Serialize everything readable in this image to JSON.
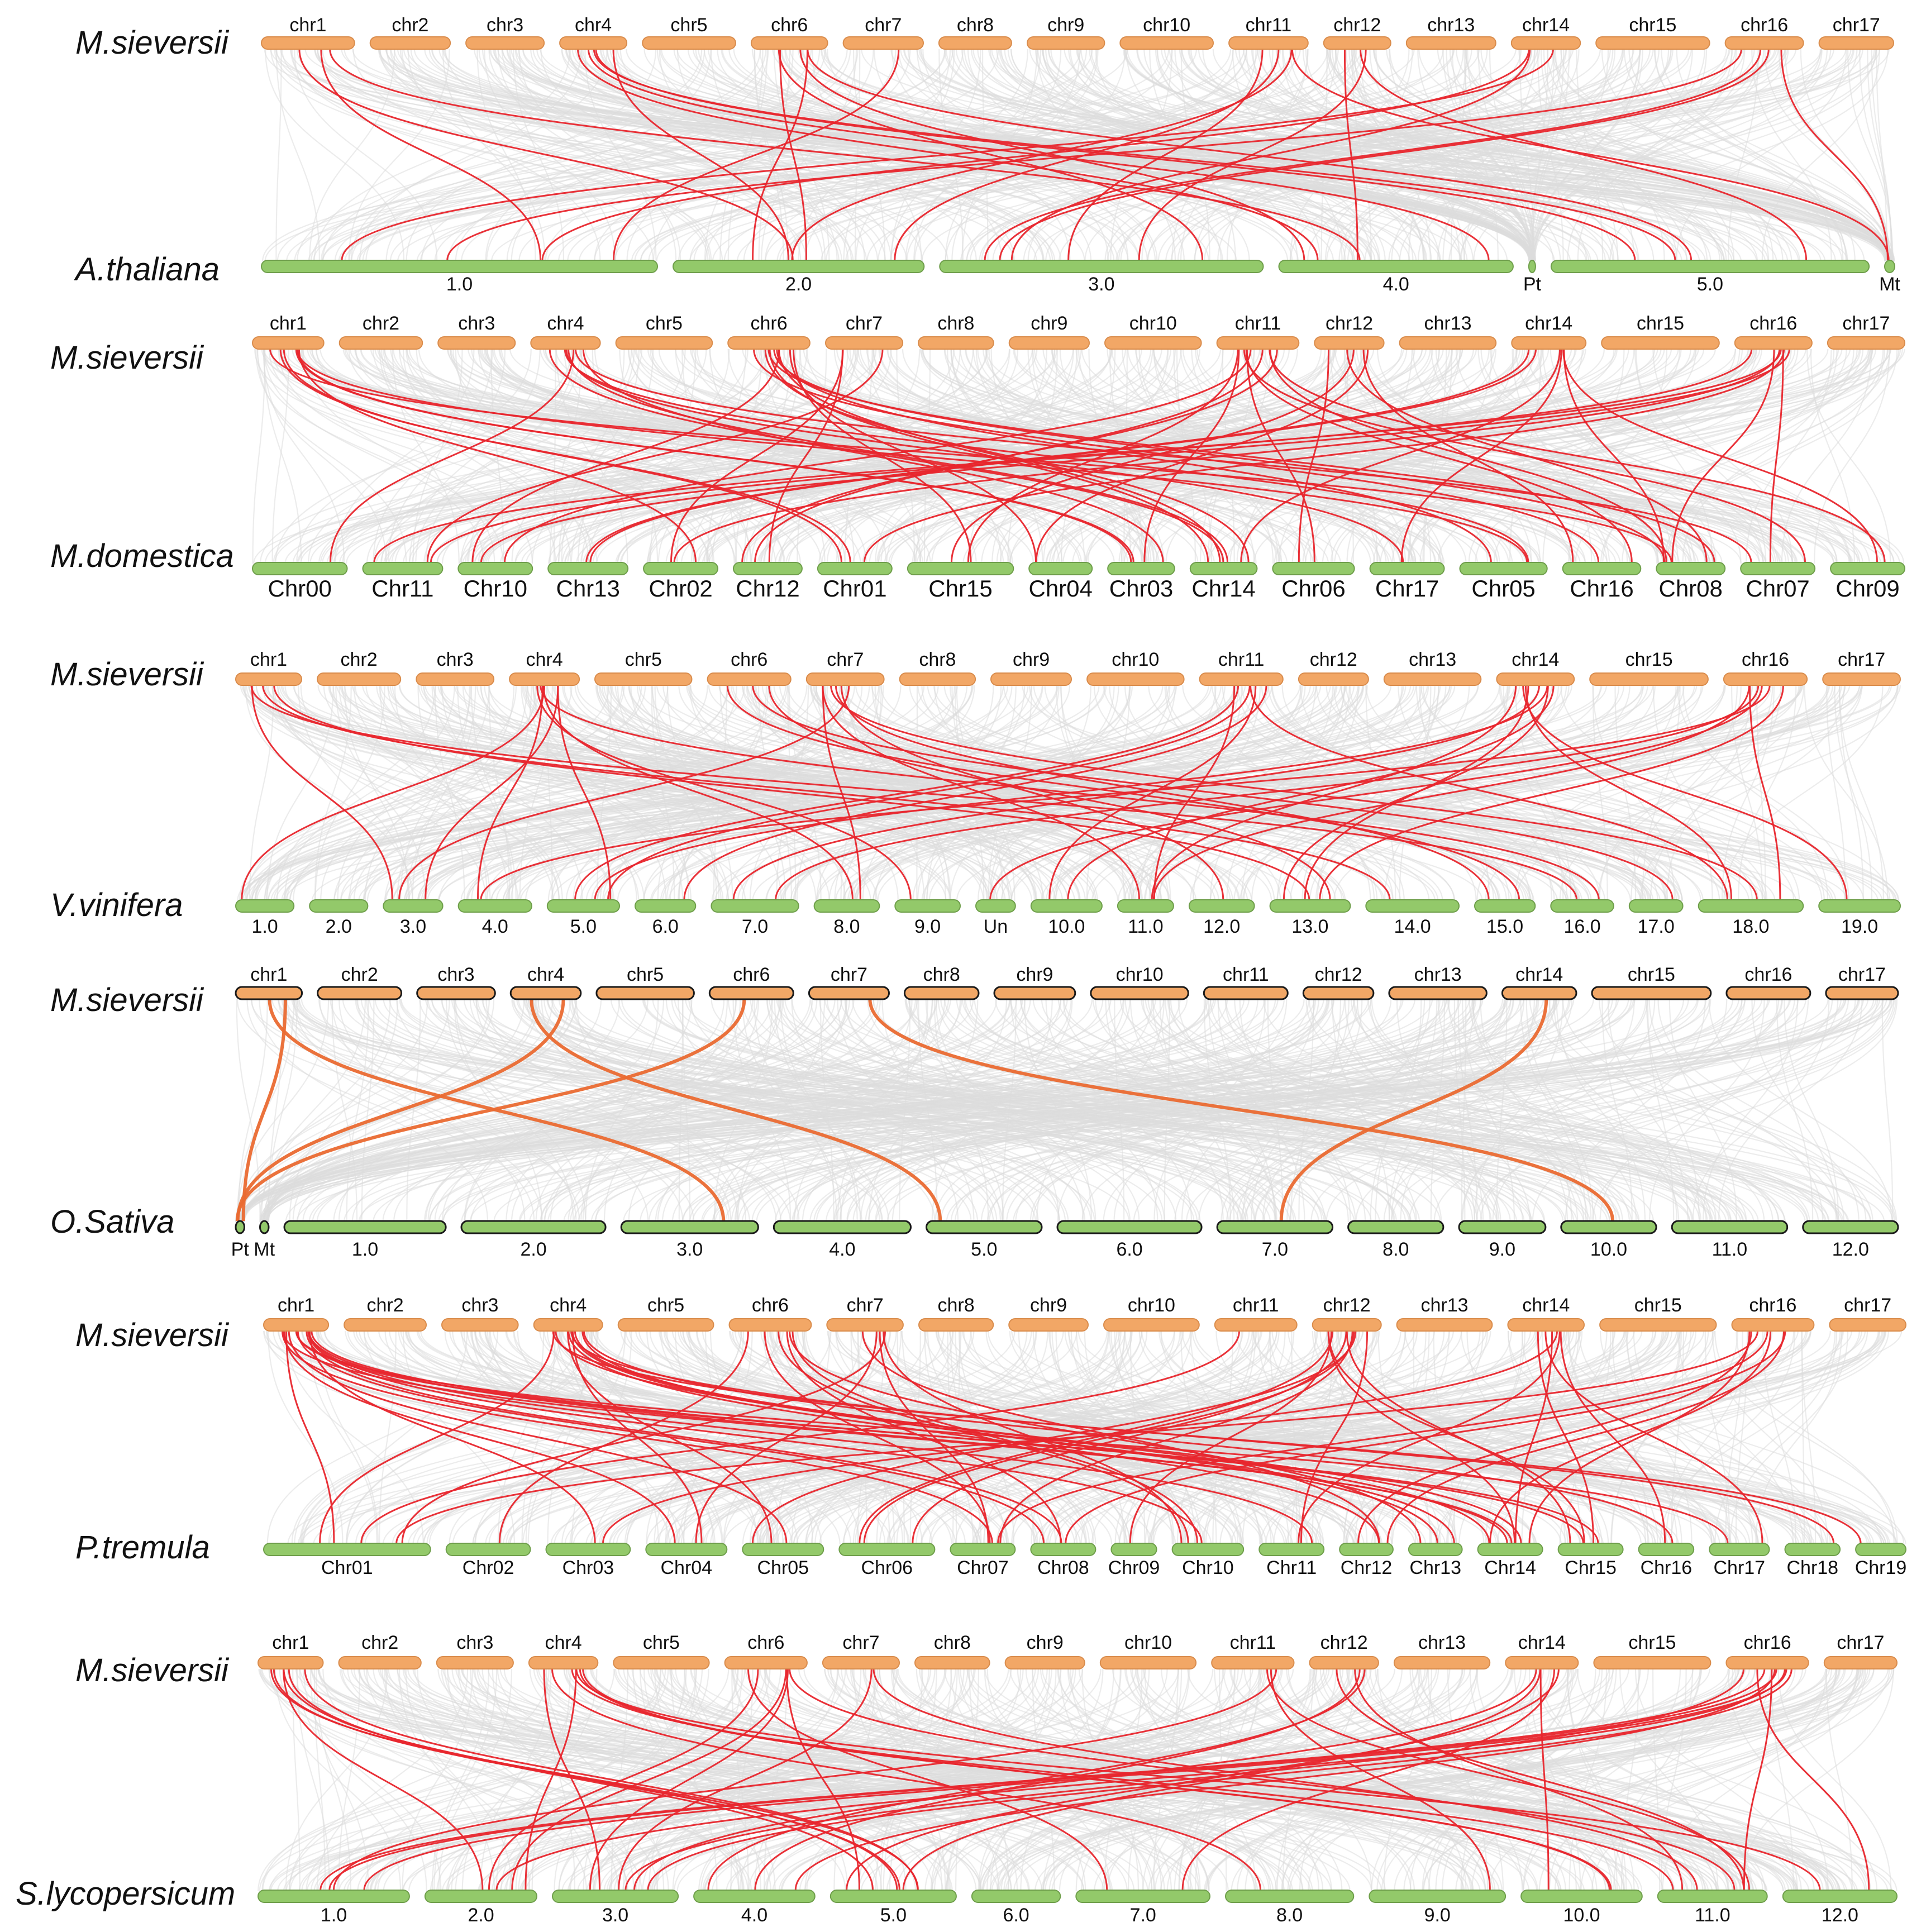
{
  "figure": {
    "colors": {
      "background_links": "#dcdcdc",
      "highlight_links": "#e8262d",
      "highlight_links_rice": "#ea6a32",
      "ms_chromosome": "#f2a766",
      "ms_chromosome_edge": "#d98c4c",
      "other_chromosome": "#93c96a",
      "other_chromosome_edge": "#6e9e4a",
      "outline_dark": "#1a1a1a"
    },
    "panels": [
      {
        "top_species": "M.sieversii",
        "bottom_species": "A.thaliana",
        "top_chromosomes": [
          "chr1",
          "chr2",
          "chr3",
          "chr4",
          "chr5",
          "chr6",
          "chr7",
          "chr8",
          "chr9",
          "chr10",
          "chr11",
          "chr12",
          "chr13",
          "chr14",
          "chr15",
          "chr16",
          "chr17"
        ],
        "bottom_chromosomes": [
          "1.0",
          "2.0",
          "3.0",
          "4.0",
          "Pt",
          "5.0",
          "Mt"
        ],
        "highlight_links": 32
      },
      {
        "top_species": "M.sieversii",
        "bottom_species": "M.domestica",
        "top_chromosomes": [
          "chr1",
          "chr2",
          "chr3",
          "chr4",
          "chr5",
          "chr6",
          "chr7",
          "chr8",
          "chr9",
          "chr10",
          "chr11",
          "chr12",
          "chr13",
          "chr14",
          "chr15",
          "chr16",
          "chr17"
        ],
        "bottom_chromosomes": [
          "Chr00",
          "Chr11",
          "Chr10",
          "Chr13",
          "Chr02",
          "Chr12",
          "Chr01",
          "Chr15",
          "Chr04",
          "Chr03",
          "Chr14",
          "Chr06",
          "Chr17",
          "Chr05",
          "Chr16",
          "Chr08",
          "Chr07",
          "Chr09"
        ],
        "highlight_links": 55
      },
      {
        "top_species": "M.sieversii",
        "bottom_species": "V.vinifera",
        "top_chromosomes": [
          "chr1",
          "chr2",
          "chr3",
          "chr4",
          "chr5",
          "chr6",
          "chr7",
          "chr8",
          "chr9",
          "chr10",
          "chr11",
          "chr12",
          "chr13",
          "chr14",
          "chr15",
          "chr16",
          "chr17"
        ],
        "bottom_chromosomes": [
          "1.0",
          "2.0",
          "3.0",
          "4.0",
          "5.0",
          "6.0",
          "7.0",
          "8.0",
          "9.0",
          "Un",
          "10.0",
          "11.0",
          "12.0",
          "13.0",
          "14.0",
          "15.0",
          "16.0",
          "17.0",
          "18.0",
          "19.0"
        ],
        "highlight_links": 40
      },
      {
        "top_species": "M.sieversii",
        "bottom_species": "O.Sativa",
        "top_chromosomes": [
          "chr1",
          "chr2",
          "chr3",
          "chr4",
          "chr5",
          "chr6",
          "chr7",
          "chr8",
          "chr9",
          "chr10",
          "chr11",
          "chr12",
          "chr13",
          "chr14",
          "chr15",
          "chr16",
          "chr17"
        ],
        "bottom_chromosomes": [
          "Pt",
          "Mt",
          "1.0",
          "2.0",
          "3.0",
          "4.0",
          "5.0",
          "6.0",
          "7.0",
          "8.0",
          "9.0",
          "10.0",
          "11.0",
          "12.0"
        ],
        "highlight_links": 7
      },
      {
        "top_species": "M.sieversii",
        "bottom_species": "P.tremula",
        "top_chromosomes": [
          "chr1",
          "chr2",
          "chr3",
          "chr4",
          "chr5",
          "chr6",
          "chr7",
          "chr8",
          "chr9",
          "chr10",
          "chr11",
          "chr12",
          "chr13",
          "chr14",
          "chr15",
          "chr16",
          "chr17"
        ],
        "bottom_chromosomes": [
          "Chr01",
          "Chr02",
          "Chr03",
          "Chr04",
          "Chr05",
          "Chr06",
          "Chr07",
          "Chr08",
          "Chr09",
          "Chr10",
          "Chr11",
          "Chr12",
          "Chr13",
          "Chr14",
          "Chr15",
          "Chr16",
          "Chr17",
          "Chr18",
          "Chr19"
        ],
        "highlight_links": 60
      },
      {
        "top_species": "M.sieversii",
        "bottom_species": "S.lycopersicum",
        "top_chromosomes": [
          "chr1",
          "chr2",
          "chr3",
          "chr4",
          "chr5",
          "chr6",
          "chr7",
          "chr8",
          "chr9",
          "chr10",
          "chr11",
          "chr12",
          "chr13",
          "chr14",
          "chr15",
          "chr16",
          "chr17"
        ],
        "bottom_chromosomes": [
          "1.0",
          "2.0",
          "3.0",
          "4.0",
          "5.0",
          "6.0",
          "7.0",
          "8.0",
          "9.0",
          "10.0",
          "11.0",
          "12.0"
        ],
        "highlight_links": 42
      }
    ]
  }
}
